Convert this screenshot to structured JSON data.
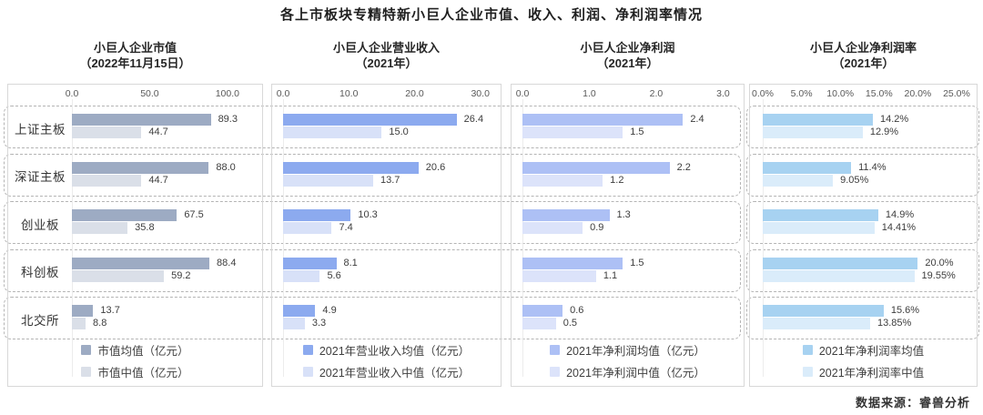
{
  "chart_data": {
    "type": "bar",
    "orientation": "horizontal",
    "title": "各上市板块专精特新小巨人企业市值、收入、利润、净利润率情况",
    "source": "数据来源：睿兽分析",
    "legend_position": "bottom",
    "grid": false,
    "categories": [
      "上证主板",
      "深证主板",
      "创业板",
      "科创板",
      "北交所"
    ],
    "panels": [
      {
        "title": "小巨人企业市值",
        "subtitle": "（2022年11月15日）",
        "axis_ticks": [
          "0.0",
          "50.0",
          "100.0"
        ],
        "axis_max": 100,
        "series": [
          {
            "name": "市值均值（亿元）",
            "color": "#9dabc3",
            "values": [
              89.3,
              88.0,
              67.5,
              88.4,
              13.7
            ],
            "labels": [
              "89.3",
              "88.0",
              "67.5",
              "88.4",
              "13.7"
            ]
          },
          {
            "name": "市值中值（亿元）",
            "color": "#dadfe8",
            "values": [
              44.7,
              44.7,
              35.8,
              59.2,
              8.8
            ],
            "labels": [
              "44.7",
              "44.7",
              "35.8",
              "59.2",
              "8.8"
            ]
          }
        ]
      },
      {
        "title": "小巨人企业营业收入",
        "subtitle": "（2021年）",
        "axis_ticks": [
          "0.0",
          "10.0",
          "20.0",
          "30.0"
        ],
        "axis_max": 30,
        "series": [
          {
            "name": "2021年营业收入均值（亿元）",
            "color": "#8caaef",
            "values": [
              26.4,
              20.6,
              10.3,
              8.1,
              4.9
            ],
            "labels": [
              "26.4",
              "20.6",
              "10.3",
              "8.1",
              "4.9"
            ]
          },
          {
            "name": "2021年营业收入中值（亿元）",
            "color": "#d8e1f8",
            "values": [
              15.0,
              13.7,
              7.4,
              5.6,
              3.3
            ],
            "labels": [
              "15.0",
              "13.7",
              "7.4",
              "5.6",
              "3.3"
            ]
          }
        ]
      },
      {
        "title": "小巨人企业净利润",
        "subtitle": "（2021年）",
        "axis_ticks": [
          "0.0",
          "1.0",
          "2.0",
          "3.0"
        ],
        "axis_max": 3,
        "series": [
          {
            "name": "2021年净利润均值（亿元）",
            "color": "#adc0f5",
            "values": [
              2.4,
              2.2,
              1.3,
              1.5,
              0.6
            ],
            "labels": [
              "2.4",
              "2.2",
              "1.3",
              "1.5",
              "0.6"
            ]
          },
          {
            "name": "2021年净利润中值（亿元）",
            "color": "#dce3fa",
            "values": [
              1.5,
              1.2,
              0.9,
              1.1,
              0.5
            ],
            "labels": [
              "1.5",
              "1.2",
              "0.9",
              "1.1",
              "0.5"
            ]
          }
        ]
      },
      {
        "title": "小巨人企业净利润率",
        "subtitle": "（2021年）",
        "axis_ticks": [
          "0.0%",
          "5.0%",
          "10.0%",
          "15.0%",
          "20.0%",
          "25.0%"
        ],
        "axis_max": 25,
        "series": [
          {
            "name": "2021年净利润率均值",
            "color": "#a7d2f1",
            "values": [
              14.2,
              11.4,
              14.9,
              20.0,
              15.6
            ],
            "labels": [
              "14.2%",
              "11.4%",
              "14.9%",
              "20.0%",
              "15.6%"
            ]
          },
          {
            "name": "2021年净利润率中值",
            "color": "#daecfa",
            "values": [
              12.9,
              9.05,
              14.41,
              19.55,
              13.85
            ],
            "labels": [
              "12.9%",
              "9.05%",
              "14.41%",
              "19.55%",
              "13.85%"
            ]
          }
        ]
      }
    ]
  },
  "colors": {
    "panel_border": "#d8d8d8",
    "band_border": "#b4b4b4",
    "axis_text": "#595959",
    "value_text": "#3d3d3d"
  }
}
